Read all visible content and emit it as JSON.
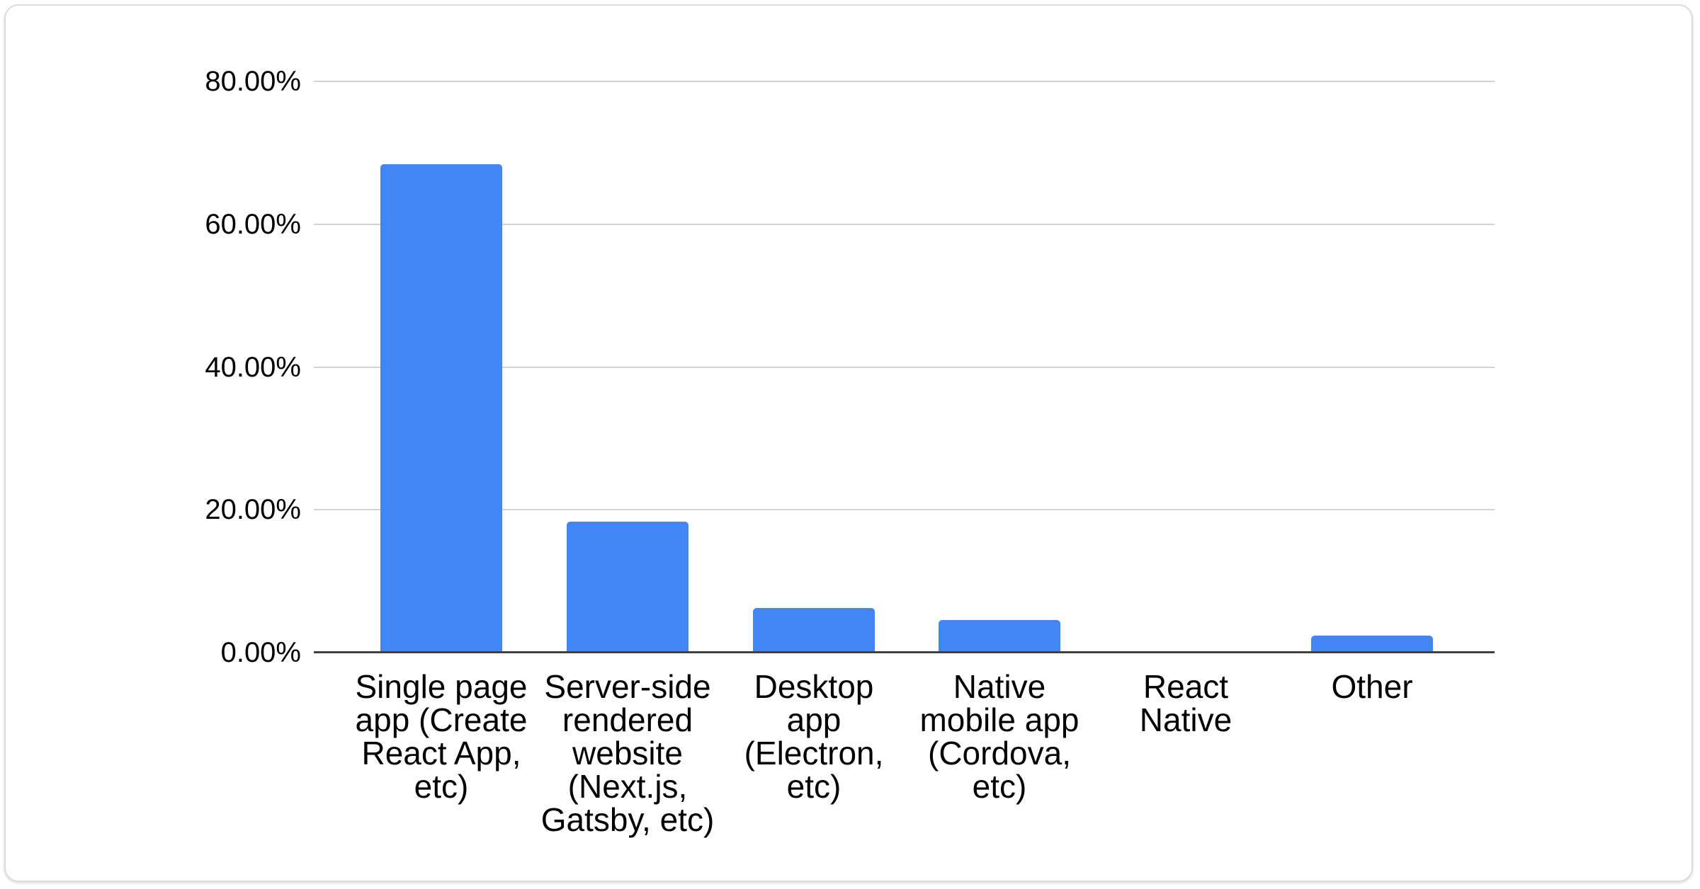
{
  "card": {
    "background": "#ffffff",
    "border_color": "#dadce0"
  },
  "chart_data": {
    "type": "bar",
    "title": "",
    "xlabel": "",
    "ylabel": "",
    "categories": [
      "Single page app (Create React App, etc)",
      "Server-side rendered website (Next.js, Gatsby, etc)",
      "Desktop app (Electron, etc)",
      "Native mobile app (Cordova, etc)",
      "React Native",
      "Other"
    ],
    "category_label_lines": [
      [
        "Single page",
        "app (Create",
        "React App,",
        "etc)"
      ],
      [
        "Server-side",
        "rendered",
        "website",
        "(Next.js,",
        "Gatsby, etc)"
      ],
      [
        "Desktop",
        "app",
        "(Electron,",
        "etc)"
      ],
      [
        "Native",
        "mobile app",
        "(Cordova,",
        "etc)"
      ],
      [
        "React",
        "Native"
      ],
      [
        "Other"
      ]
    ],
    "values": [
      68.4,
      18.3,
      6.2,
      4.6,
      0,
      2.4
    ],
    "value_unit": "%",
    "ylim": [
      0,
      80
    ],
    "ytick_interval": 20,
    "yticks": [
      {
        "value": 80,
        "label": "80.00%"
      },
      {
        "value": 60,
        "label": "60.00%"
      },
      {
        "value": 40,
        "label": "40.00%"
      },
      {
        "value": 20,
        "label": "20.00%"
      },
      {
        "value": 0,
        "label": "0.00%"
      }
    ],
    "grid": true,
    "legend": "none",
    "colors": {
      "bar": "#4285f4",
      "gridline": "#d2d2d2",
      "axis_line": "#424242",
      "text": "#000000"
    }
  }
}
